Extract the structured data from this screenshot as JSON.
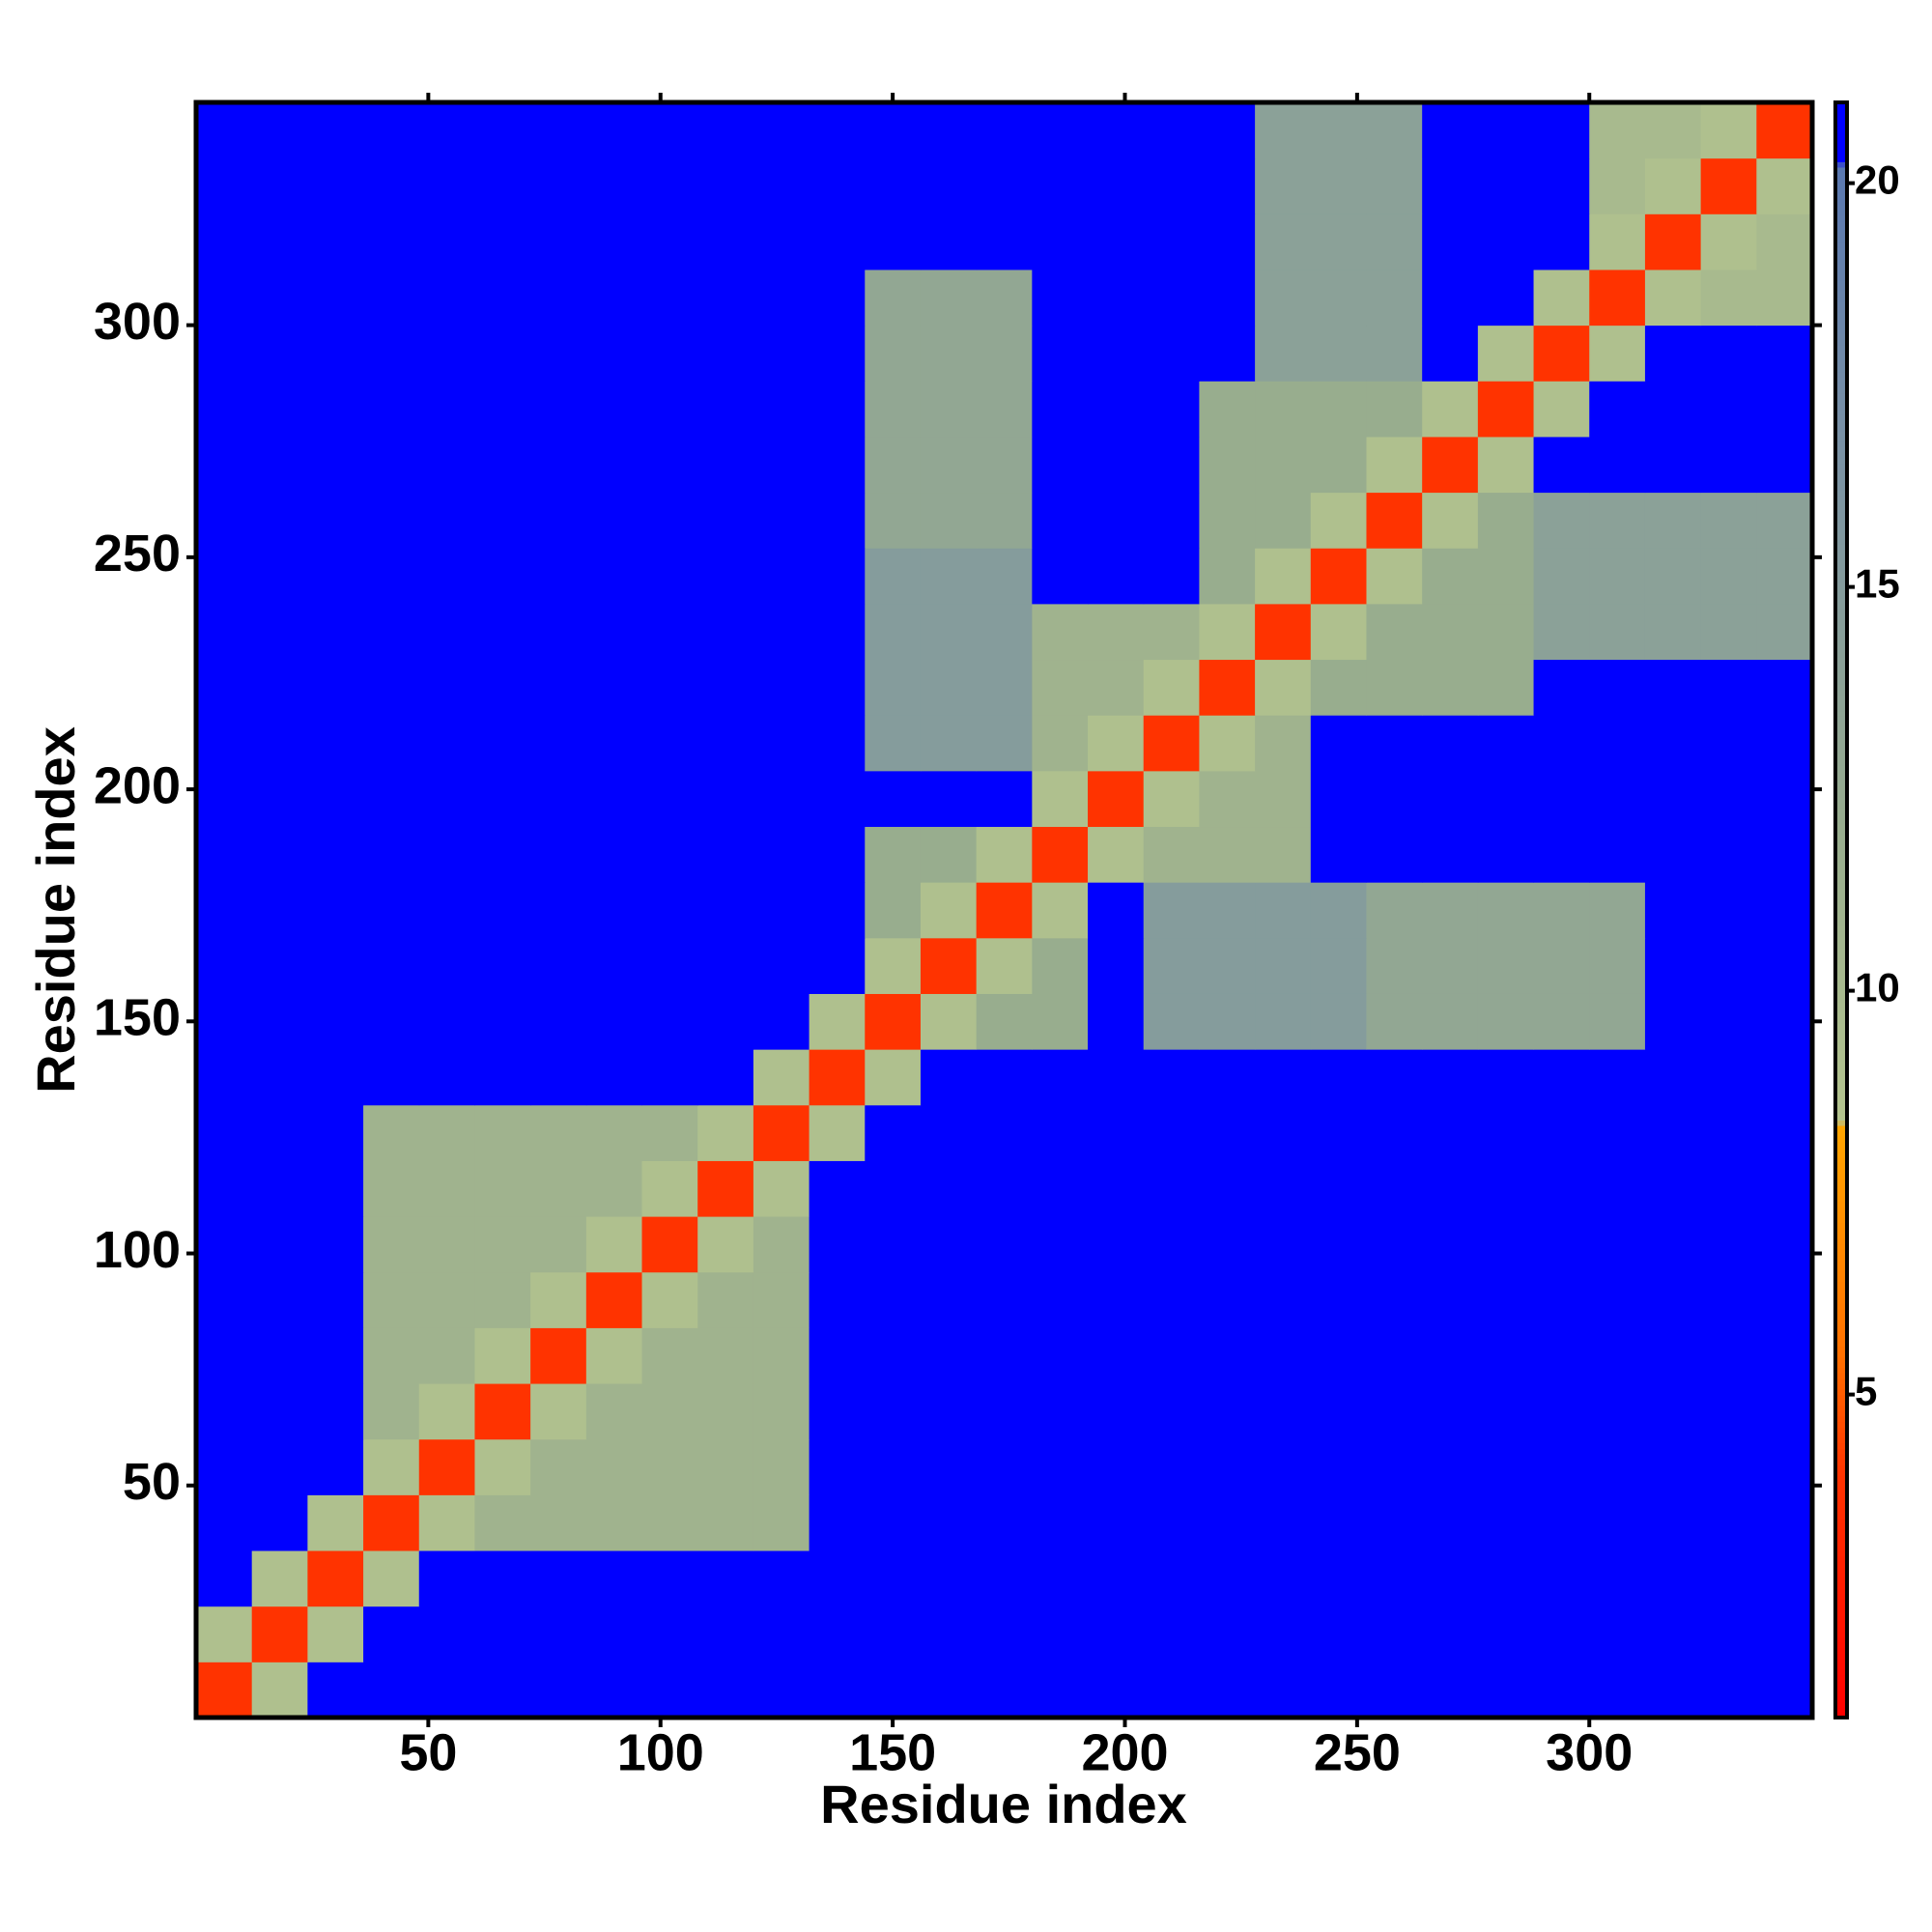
{
  "chart_data": {
    "type": "heatmap",
    "x_label": "Residue index",
    "y_label": "Residue index",
    "x": [
      0,
      12,
      24,
      36,
      48,
      60,
      72,
      84,
      96,
      108,
      120,
      132,
      144,
      156,
      168,
      180,
      192,
      204,
      216,
      228,
      240,
      252,
      264,
      276,
      288,
      300,
      312,
      324,
      336,
      348
    ],
    "y": [
      0,
      12,
      24,
      36,
      48,
      60,
      72,
      84,
      96,
      108,
      120,
      132,
      144,
      156,
      168,
      180,
      192,
      204,
      216,
      228,
      240,
      252,
      264,
      276,
      288,
      300,
      312,
      324,
      336,
      348
    ],
    "values": [
      [
        4,
        9,
        21,
        21,
        21,
        21,
        21,
        21,
        21,
        21,
        21,
        21,
        21,
        21,
        21,
        21,
        21,
        21,
        21,
        21,
        21,
        21,
        21,
        21,
        21,
        21,
        21,
        21,
        21
      ],
      [
        9,
        4,
        9,
        21,
        21,
        21,
        21,
        21,
        21,
        21,
        21,
        21,
        21,
        21,
        21,
        21,
        21,
        21,
        21,
        21,
        21,
        21,
        21,
        21,
        21,
        21,
        21,
        21,
        21
      ],
      [
        21,
        9,
        4,
        9,
        21,
        21,
        21,
        21,
        21,
        21,
        21,
        21,
        21,
        21,
        21,
        21,
        21,
        21,
        21,
        21,
        21,
        21,
        21,
        21,
        21,
        21,
        21,
        21,
        21
      ],
      [
        21,
        21,
        9,
        4,
        9,
        11,
        11,
        11,
        11,
        11,
        11,
        21,
        21,
        21,
        21,
        21,
        21,
        21,
        21,
        21,
        21,
        21,
        21,
        21,
        21,
        21,
        21,
        21,
        21
      ],
      [
        21,
        21,
        21,
        9,
        4,
        9,
        11,
        11,
        11,
        11,
        11,
        21,
        21,
        21,
        21,
        21,
        21,
        21,
        21,
        21,
        21,
        21,
        21,
        21,
        21,
        21,
        21,
        21,
        21
      ],
      [
        21,
        21,
        21,
        11,
        9,
        4,
        9,
        11,
        11,
        11,
        11,
        21,
        21,
        21,
        21,
        21,
        21,
        21,
        21,
        21,
        21,
        21,
        21,
        21,
        21,
        21,
        21,
        21,
        21
      ],
      [
        21,
        21,
        21,
        11,
        11,
        9,
        4,
        9,
        11,
        11,
        11,
        21,
        21,
        21,
        21,
        21,
        21,
        21,
        21,
        21,
        21,
        21,
        21,
        21,
        21,
        21,
        21,
        21,
        21
      ],
      [
        21,
        21,
        21,
        11,
        11,
        11,
        9,
        4,
        9,
        11,
        11,
        21,
        21,
        21,
        21,
        21,
        21,
        21,
        21,
        21,
        21,
        21,
        21,
        21,
        21,
        21,
        21,
        21,
        21
      ],
      [
        21,
        21,
        21,
        11,
        11,
        11,
        11,
        9,
        4,
        9,
        11,
        21,
        21,
        21,
        21,
        21,
        21,
        21,
        21,
        21,
        21,
        21,
        21,
        21,
        21,
        21,
        21,
        21,
        21
      ],
      [
        21,
        21,
        21,
        11,
        11,
        11,
        11,
        11,
        9,
        4,
        9,
        21,
        21,
        21,
        21,
        21,
        21,
        21,
        21,
        21,
        21,
        21,
        21,
        21,
        21,
        21,
        21,
        21,
        21
      ],
      [
        21,
        21,
        21,
        11,
        11,
        11,
        11,
        11,
        11,
        9,
        4,
        9,
        21,
        21,
        21,
        21,
        21,
        21,
        21,
        21,
        21,
        21,
        21,
        21,
        21,
        21,
        21,
        21,
        21
      ],
      [
        21,
        21,
        21,
        21,
        21,
        21,
        21,
        21,
        21,
        21,
        9,
        4,
        9,
        21,
        21,
        21,
        21,
        21,
        21,
        21,
        21,
        21,
        21,
        21,
        21,
        21,
        21,
        21,
        21
      ],
      [
        21,
        21,
        21,
        21,
        21,
        21,
        21,
        21,
        21,
        21,
        21,
        9,
        4,
        9,
        12,
        12,
        21,
        15,
        15,
        15,
        15,
        13,
        13,
        13,
        13,
        13,
        21,
        21,
        21
      ],
      [
        21,
        21,
        21,
        21,
        21,
        21,
        21,
        21,
        21,
        21,
        21,
        21,
        9,
        4,
        9,
        12,
        21,
        15,
        15,
        15,
        15,
        13,
        13,
        13,
        13,
        13,
        21,
        21,
        21
      ],
      [
        21,
        21,
        21,
        21,
        21,
        21,
        21,
        21,
        21,
        21,
        21,
        21,
        12,
        9,
        4,
        9,
        21,
        15,
        15,
        15,
        15,
        13,
        13,
        13,
        13,
        13,
        21,
        21,
        21
      ],
      [
        21,
        21,
        21,
        21,
        21,
        21,
        21,
        21,
        21,
        21,
        21,
        21,
        12,
        12,
        9,
        4,
        9,
        11,
        11,
        11,
        21,
        21,
        21,
        21,
        21,
        21,
        21,
        21,
        21
      ],
      [
        21,
        21,
        21,
        21,
        21,
        21,
        21,
        21,
        21,
        21,
        21,
        21,
        21,
        21,
        21,
        9,
        4,
        9,
        11,
        11,
        21,
        21,
        21,
        21,
        21,
        21,
        21,
        21,
        21
      ],
      [
        21,
        21,
        21,
        21,
        21,
        21,
        21,
        21,
        21,
        21,
        21,
        21,
        15,
        15,
        15,
        11,
        9,
        4,
        9,
        11,
        21,
        21,
        21,
        21,
        21,
        21,
        21,
        21,
        21
      ],
      [
        21,
        21,
        21,
        21,
        21,
        21,
        21,
        21,
        21,
        21,
        21,
        21,
        15,
        15,
        15,
        11,
        11,
        9,
        4,
        9,
        12,
        12,
        12,
        12,
        21,
        21,
        21,
        21,
        21
      ],
      [
        21,
        21,
        21,
        21,
        21,
        21,
        21,
        21,
        21,
        21,
        21,
        21,
        15,
        15,
        15,
        11,
        11,
        11,
        9,
        4,
        9,
        12,
        12,
        12,
        14,
        14,
        14,
        14,
        14
      ],
      [
        21,
        21,
        21,
        21,
        21,
        21,
        21,
        21,
        21,
        21,
        21,
        21,
        15,
        15,
        15,
        21,
        21,
        21,
        12,
        9,
        4,
        9,
        12,
        12,
        14,
        14,
        14,
        14,
        14
      ],
      [
        21,
        21,
        21,
        21,
        21,
        21,
        21,
        21,
        21,
        21,
        21,
        21,
        13,
        13,
        13,
        21,
        21,
        21,
        12,
        12,
        9,
        4,
        9,
        12,
        14,
        14,
        14,
        14,
        14
      ],
      [
        21,
        21,
        21,
        21,
        21,
        21,
        21,
        21,
        21,
        21,
        21,
        21,
        13,
        13,
        13,
        21,
        21,
        21,
        12,
        12,
        12,
        9,
        4,
        9,
        21,
        21,
        21,
        21,
        21
      ],
      [
        21,
        21,
        21,
        21,
        21,
        21,
        21,
        21,
        21,
        21,
        21,
        21,
        13,
        13,
        13,
        21,
        21,
        21,
        12,
        12,
        12,
        12,
        9,
        4,
        9,
        21,
        21,
        21,
        21
      ],
      [
        21,
        21,
        21,
        21,
        21,
        21,
        21,
        21,
        21,
        21,
        21,
        21,
        13,
        13,
        13,
        21,
        21,
        21,
        21,
        14,
        14,
        14,
        21,
        9,
        4,
        9,
        21,
        21,
        21
      ],
      [
        21,
        21,
        21,
        21,
        21,
        21,
        21,
        21,
        21,
        21,
        21,
        21,
        13,
        13,
        13,
        21,
        21,
        21,
        21,
        14,
        14,
        14,
        21,
        21,
        9,
        4,
        9,
        10,
        10
      ],
      [
        21,
        21,
        21,
        21,
        21,
        21,
        21,
        21,
        21,
        21,
        21,
        21,
        21,
        21,
        21,
        21,
        21,
        21,
        21,
        14,
        14,
        14,
        21,
        21,
        21,
        9,
        4,
        9,
        10
      ],
      [
        21,
        21,
        21,
        21,
        21,
        21,
        21,
        21,
        21,
        21,
        21,
        21,
        21,
        21,
        21,
        21,
        21,
        21,
        21,
        14,
        14,
        14,
        21,
        21,
        21,
        10,
        9,
        4,
        9
      ],
      [
        21,
        21,
        21,
        21,
        21,
        21,
        21,
        21,
        21,
        21,
        21,
        21,
        21,
        21,
        21,
        21,
        21,
        21,
        21,
        14,
        14,
        14,
        21,
        21,
        21,
        10,
        10,
        9,
        4
      ]
    ],
    "xlim": [
      0,
      348
    ],
    "ylim": [
      0,
      348
    ],
    "xticks": [
      50,
      100,
      150,
      200,
      250,
      300
    ],
    "yticks": [
      50,
      100,
      150,
      200,
      250,
      300
    ],
    "zlim": [
      1,
      21
    ],
    "zticks": [
      5,
      10,
      15,
      20
    ],
    "colorscale": [
      {
        "value": 1,
        "color": "#ff0000"
      },
      {
        "value": 4,
        "color": "#ff3300"
      },
      {
        "value": 5.5,
        "color": "#ff7000"
      },
      {
        "value": 8.3,
        "color": "#ffa500"
      },
      {
        "value": 8.4,
        "color": "#b4c48e"
      },
      {
        "value": 12,
        "color": "#98ad8e"
      },
      {
        "value": 17,
        "color": "#7890a6"
      },
      {
        "value": 20.2,
        "color": "#5a78b0"
      },
      {
        "value": 20.3,
        "color": "#0000ff"
      },
      {
        "value": 21,
        "color": "#0000ff"
      }
    ]
  }
}
